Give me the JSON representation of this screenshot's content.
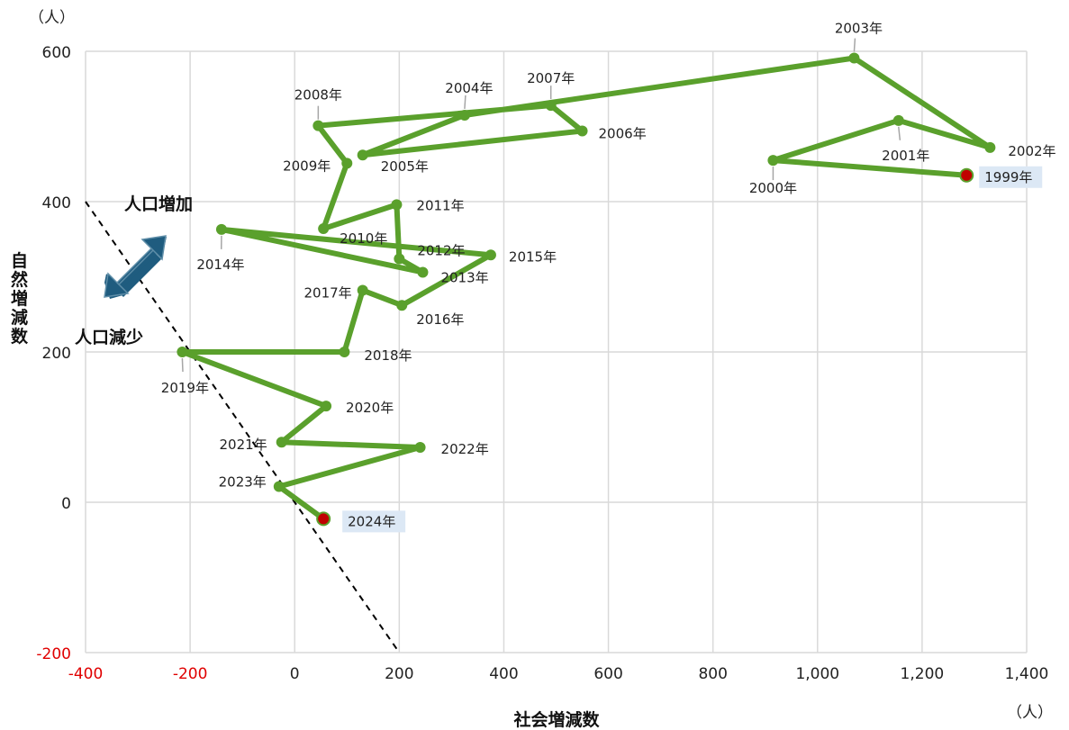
{
  "chart_data": {
    "type": "scatter",
    "xlabel": "社会増減数",
    "ylabel": "自然増減数",
    "x_unit": "（人）",
    "y_unit": "（人）",
    "xlim": [
      -400,
      1400
    ],
    "ylim": [
      -200,
      600
    ],
    "x_ticks": [
      "-400",
      "-200",
      "0",
      "200",
      "400",
      "600",
      "800",
      "1,000",
      "1,200",
      "1,400"
    ],
    "y_ticks": [
      "-200",
      "0",
      "200",
      "400",
      "600"
    ],
    "grid": true,
    "line_color": "#5aa02c",
    "highlight_color": "#c00000",
    "negative_tick_color": "#e00000",
    "points": [
      {
        "label": "1999年",
        "x": 1285,
        "y": 435,
        "highlight": true
      },
      {
        "label": "2000年",
        "x": 915,
        "y": 455
      },
      {
        "label": "2001年",
        "x": 1155,
        "y": 508
      },
      {
        "label": "2002年",
        "x": 1330,
        "y": 472
      },
      {
        "label": "2003年",
        "x": 1070,
        "y": 591
      },
      {
        "label": "2004年",
        "x": 325,
        "y": 515
      },
      {
        "label": "2005年",
        "x": 130,
        "y": 462
      },
      {
        "label": "2006年",
        "x": 550,
        "y": 494
      },
      {
        "label": "2007年",
        "x": 490,
        "y": 528
      },
      {
        "label": "2008年",
        "x": 45,
        "y": 501
      },
      {
        "label": "2009年",
        "x": 100,
        "y": 451
      },
      {
        "label": "2010年",
        "x": 55,
        "y": 364
      },
      {
        "label": "2011年",
        "x": 195,
        "y": 396
      },
      {
        "label": "2012年",
        "x": 200,
        "y": 324
      },
      {
        "label": "2013年",
        "x": 245,
        "y": 306
      },
      {
        "label": "2014年",
        "x": -140,
        "y": 363
      },
      {
        "label": "2015年",
        "x": 375,
        "y": 329
      },
      {
        "label": "2016年",
        "x": 205,
        "y": 262
      },
      {
        "label": "2017年",
        "x": 130,
        "y": 282
      },
      {
        "label": "2018年",
        "x": 95,
        "y": 200
      },
      {
        "label": "2019年",
        "x": -215,
        "y": 200
      },
      {
        "label": "2020年",
        "x": 60,
        "y": 128
      },
      {
        "label": "2021年",
        "x": -25,
        "y": 80
      },
      {
        "label": "2022年",
        "x": 240,
        "y": 73
      },
      {
        "label": "2023年",
        "x": -30,
        "y": 21
      },
      {
        "label": "2024年",
        "x": 55,
        "y": -22,
        "highlight": true
      }
    ],
    "reference_line": {
      "from": [
        -400,
        400
      ],
      "to": [
        200,
        -200
      ]
    },
    "annotations": {
      "increase": "人口増加",
      "decrease": "人口減少"
    }
  }
}
